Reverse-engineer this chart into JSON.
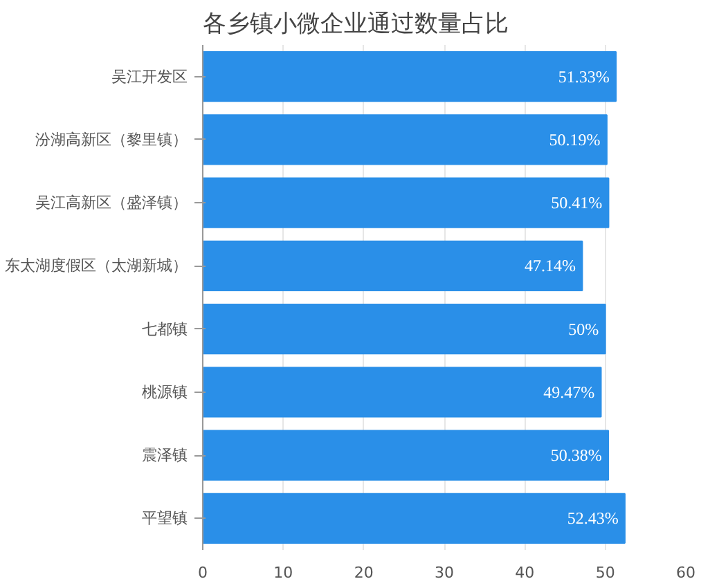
{
  "chart_data": {
    "type": "bar",
    "orientation": "horizontal",
    "title": "各乡镇小微企业通过数量占比",
    "categories": [
      "吴江开发区",
      "汾湖高新区（黎里镇）",
      "吴江高新区（盛泽镇）",
      "东太湖度假区（太湖新城）",
      "七都镇",
      "桃源镇",
      "震泽镇",
      "平望镇"
    ],
    "values": [
      51.33,
      50.19,
      50.41,
      47.14,
      50,
      49.47,
      50.38,
      52.43
    ],
    "value_labels": [
      "51.33%",
      "50.19%",
      "50.41%",
      "47.14%",
      "50%",
      "49.47%",
      "50.38%",
      "52.43%"
    ],
    "color": "#2a8fe8",
    "xlim": [
      0,
      60
    ],
    "xticks": [
      0,
      10,
      20,
      30,
      40,
      50,
      60
    ],
    "grid": "x"
  }
}
